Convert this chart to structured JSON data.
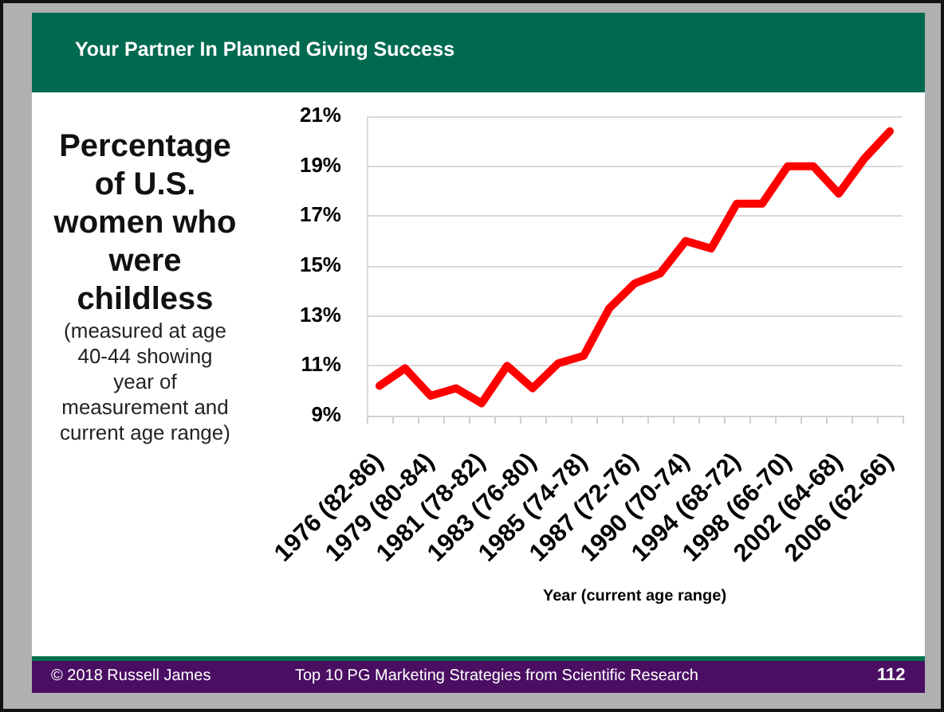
{
  "chart_data": {
    "type": "line",
    "title": "Percentage of U.S. women who were childless",
    "subtitle": "(measured at age 40-44 showing year of measurement and current age range)",
    "xlabel": "Year (current age range)",
    "categories": [
      "1976 (82-86)",
      null,
      "1979 (80-84)",
      null,
      "1981 (78-82)",
      null,
      "1983 (76-80)",
      null,
      "1985 (74-78)",
      null,
      "1987 (72-76)",
      null,
      "1990 (70-74)",
      null,
      "1994 (68-72)",
      null,
      "1998 (66-70)",
      null,
      "2002 (64-68)",
      null,
      "2006 (62-66)"
    ],
    "values": [
      10.2,
      10.9,
      9.8,
      10.1,
      9.5,
      11.0,
      10.1,
      11.1,
      11.4,
      13.3,
      14.3,
      14.7,
      16.0,
      15.7,
      17.5,
      17.5,
      19.0,
      19.0,
      17.9,
      19.3,
      20.4
    ],
    "color": "#ff0000",
    "ylim": [
      9,
      21
    ],
    "yticks": [
      {
        "value": 9,
        "label": "9%"
      },
      {
        "value": 11,
        "label": "11%"
      },
      {
        "value": 13,
        "label": "13%"
      },
      {
        "value": 15,
        "label": "15%"
      },
      {
        "value": 17,
        "label": "17%"
      },
      {
        "value": 19,
        "label": "19%"
      },
      {
        "value": 21,
        "label": "21%"
      }
    ],
    "grid": "y",
    "marker": "none",
    "line_style": "solid",
    "annotations": [
      "Your Partner In Planned Giving Success",
      "© 2018 Russell James",
      "Top 10 PG Marketing Strategies from Scientific Research",
      "112"
    ]
  }
}
